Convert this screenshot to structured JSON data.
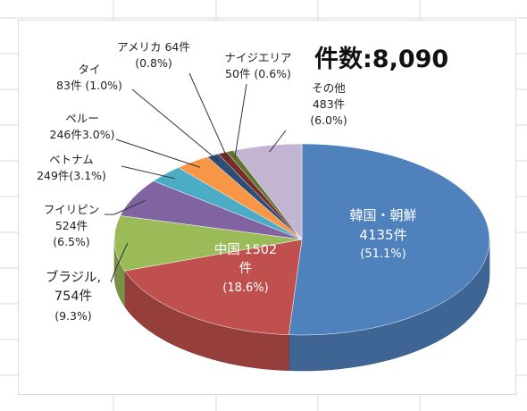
{
  "chart_data": {
    "type": "pie",
    "title": "件数:8,090",
    "total": 8090,
    "slices": [
      {
        "name": "韓国・朝鮮",
        "count": 4135,
        "count_label": "4135件",
        "percent_label": "(51.1%)",
        "color": "#4f81bd"
      },
      {
        "name": "中国",
        "count": 1502,
        "count_label": "1502",
        "count_label2": "件",
        "percent_label": "(18.6%)",
        "color": "#c0504d"
      },
      {
        "name": "ブラジル,",
        "count": 754,
        "count_label": "754件",
        "percent_label": "(9.3%)",
        "color": "#9bbb59"
      },
      {
        "name": "フイリピン",
        "count": 524,
        "count_label": "524件",
        "percent_label": "(6.5%)",
        "color": "#8064a2"
      },
      {
        "name": "ベトナム",
        "count": 249,
        "count_label": "249件(3.1%)",
        "percent_label": "",
        "color": "#4bacc6"
      },
      {
        "name": "ペルー",
        "count": 246,
        "count_label": "246件3.0%)",
        "percent_label": "",
        "color": "#f79646"
      },
      {
        "name": "タイ",
        "count": 83,
        "count_label": "83件 (1.0%)",
        "percent_label": "",
        "color": "#2c4d75"
      },
      {
        "name": "アメリカ 64件",
        "count": 64,
        "count_label": "(0.8%)",
        "percent_label": "",
        "color": "#772c2a"
      },
      {
        "name": "ナイジエリア",
        "count": 50,
        "count_label": "50件 (0.6%)",
        "percent_label": "",
        "color": "#5f7530"
      },
      {
        "name": "その他",
        "count": 483,
        "count_label": "483件",
        "percent_label": "(6.0%)",
        "color": "#c3b4d2"
      }
    ]
  }
}
